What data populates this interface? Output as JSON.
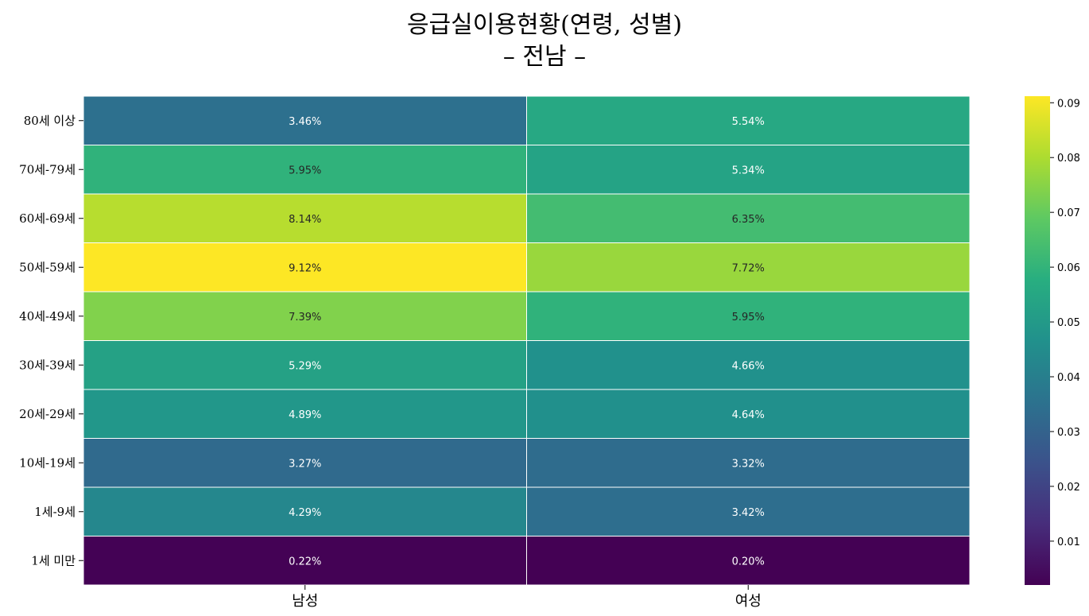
{
  "title": {
    "line1": "응급실이용현황(연령, 성별)",
    "line2": "– 전남 –"
  },
  "chart_data": {
    "type": "heatmap",
    "title": "응급실이용현황(연령, 성별) – 전남 –",
    "rows": [
      "80세 이상",
      "70세-79세",
      "60세-69세",
      "50세-59세",
      "40세-49세",
      "30세-39세",
      "20세-29세",
      "10세-19세",
      "1세-9세",
      "1세 미만"
    ],
    "columns": [
      "남성",
      "여성"
    ],
    "values": [
      [
        0.0346,
        0.0554
      ],
      [
        0.0595,
        0.0534
      ],
      [
        0.0814,
        0.0635
      ],
      [
        0.0912,
        0.0772
      ],
      [
        0.0739,
        0.0595
      ],
      [
        0.0529,
        0.0466
      ],
      [
        0.0489,
        0.0464
      ],
      [
        0.0327,
        0.0332
      ],
      [
        0.0429,
        0.0342
      ],
      [
        0.0022,
        0.002
      ]
    ],
    "cell_labels": [
      [
        "3.46%",
        "5.54%"
      ],
      [
        "5.95%",
        "5.34%"
      ],
      [
        "8.14%",
        "6.35%"
      ],
      [
        "9.12%",
        "7.72%"
      ],
      [
        "7.39%",
        "5.95%"
      ],
      [
        "5.29%",
        "4.66%"
      ],
      [
        "4.89%",
        "4.64%"
      ],
      [
        "3.27%",
        "3.32%"
      ],
      [
        "4.29%",
        "3.42%"
      ],
      [
        "0.22%",
        "0.20%"
      ]
    ],
    "colormap": "viridis",
    "colorbar": {
      "min": 0.002,
      "max": 0.0912,
      "ticks": [
        "0.01",
        "0.02",
        "0.03",
        "0.04",
        "0.05",
        "0.06",
        "0.07",
        "0.08",
        "0.09"
      ]
    },
    "cell_border_color": "#ffffff"
  }
}
